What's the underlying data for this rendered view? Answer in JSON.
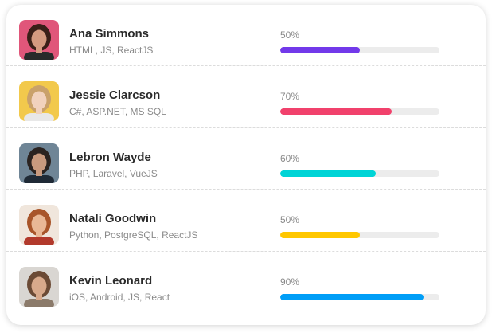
{
  "people": [
    {
      "name": "Ana Simmons",
      "skills": "HTML, JS, ReactJS",
      "progress_label": "50%",
      "progress": 0.5,
      "bar_color": "#7239ea",
      "avatar_colors": {
        "bg": "#e0567a",
        "hair": "#3a1f18",
        "skin": "#d49a80",
        "shirt": "#2a2a2a"
      }
    },
    {
      "name": "Jessie Clarcson",
      "skills": "C#, ASP.NET, MS SQL",
      "progress_label": "70%",
      "progress": 0.7,
      "bar_color": "#f1416c",
      "avatar_colors": {
        "bg": "#f2c94c",
        "hair": "#c9a16a",
        "skin": "#f1d2bd",
        "shirt": "#e8e8e8"
      }
    },
    {
      "name": "Lebron Wayde",
      "skills": "PHP, Laravel, VueJS",
      "progress_label": "60%",
      "progress": 0.6,
      "bar_color": "#00d4d6",
      "avatar_colors": {
        "bg": "#6f8596",
        "hair": "#2b2320",
        "skin": "#c99a7e",
        "shirt": "#1f2a36"
      }
    },
    {
      "name": "Natali Goodwin",
      "skills": "Python, PostgreSQL, ReactJS",
      "progress_label": "50%",
      "progress": 0.5,
      "bar_color": "#ffc700",
      "avatar_colors": {
        "bg": "#f0e6dc",
        "hair": "#a8552a",
        "skin": "#e9b896",
        "shirt": "#b23a2c"
      }
    },
    {
      "name": "Kevin Leonard",
      "skills": "iOS, Android, JS, React",
      "progress_label": "90%",
      "progress": 0.9,
      "bar_color": "#009ef7",
      "avatar_colors": {
        "bg": "#d9d6d2",
        "hair": "#6b4a35",
        "skin": "#d8a98b",
        "shirt": "#8b7a6a"
      }
    }
  ]
}
